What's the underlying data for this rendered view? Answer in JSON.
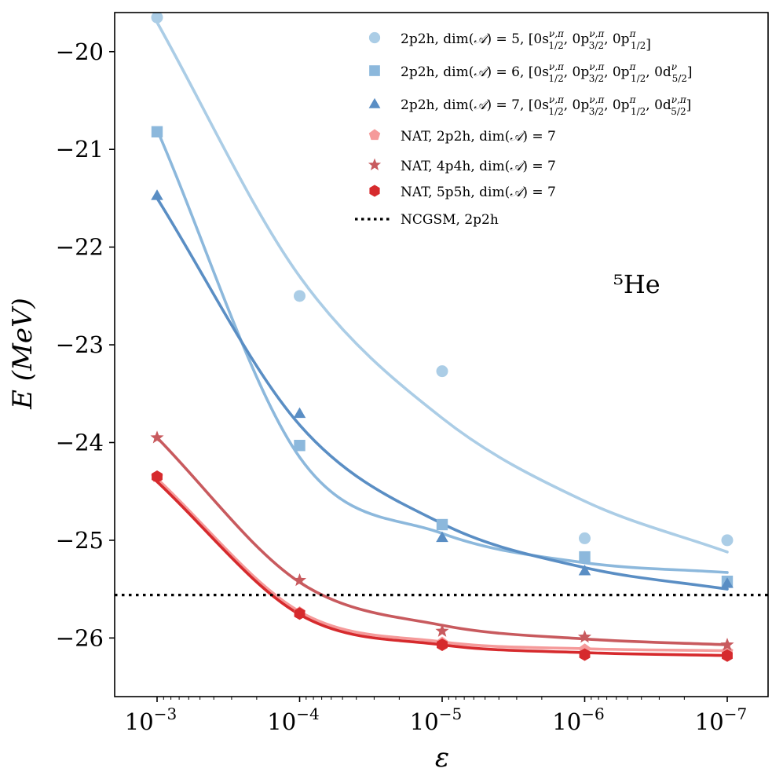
{
  "chart_data": {
    "type": "scatter",
    "title": "",
    "annotation": "⁵He",
    "xlabel": "ε",
    "ylabel": "E (MeV)",
    "x_scale": "log-reversed",
    "x": [
      0.001,
      0.0001,
      1e-05,
      1e-06,
      1e-07
    ],
    "xtick_labels": [
      {
        "base": "10",
        "exp": "−3"
      },
      {
        "base": "10",
        "exp": "−4"
      },
      {
        "base": "10",
        "exp": "−5"
      },
      {
        "base": "10",
        "exp": "−6"
      },
      {
        "base": "10",
        "exp": "−7"
      }
    ],
    "ylim": [
      -26.6,
      -19.6
    ],
    "yticks": [
      -26,
      -25,
      -24,
      -23,
      -22,
      -21,
      -20
    ],
    "ytick_labels": [
      "−26",
      "−25",
      "−24",
      "−23",
      "−22",
      "−21",
      "−20"
    ],
    "grid": false,
    "legend_position": "top-right",
    "series": [
      {
        "marker": "circle",
        "color": "#abcde6",
        "legend": {
          "main": "2p2h, dim(",
          "calA": "𝒜",
          "after": ") = 5, [0s",
          "sup1": "ν,π",
          "sub1": "1/2",
          "mid1": ", 0p",
          "sup2": "ν,π",
          "sub2": "3/2",
          "mid2": ", 0p",
          "sup3": "π",
          "sub3": "1/2",
          "mid3": "",
          "sup4": "",
          "sub4": "",
          "end": "]"
        },
        "values": [
          -19.65,
          -22.5,
          -23.27,
          -24.98,
          -25.0
        ],
        "fit": [
          -19.7,
          -22.3,
          -23.75,
          -24.6,
          -25.12
        ]
      },
      {
        "marker": "square",
        "color": "#8cb8dc",
        "legend": {
          "main": "2p2h, dim(",
          "calA": "𝒜",
          "after": ") = 6, [0s",
          "sup1": "ν,π",
          "sub1": "1/2",
          "mid1": ", 0p",
          "sup2": "ν,π",
          "sub2": "3/2",
          "mid2": ", 0p",
          "sup3": "π",
          "sub3": "1/2",
          "mid3": ", 0d",
          "sup4": "ν",
          "sub4": "5/2",
          "end": "]"
        },
        "values": [
          -20.82,
          -24.03,
          -24.84,
          -25.17,
          -25.42
        ],
        "fit": [
          -20.8,
          -24.15,
          -24.93,
          -25.23,
          -25.33
        ]
      },
      {
        "marker": "triangle",
        "color": "#5a8ec4",
        "legend": {
          "main": "2p2h, dim(",
          "calA": "𝒜",
          "after": ") = 7, [0s",
          "sup1": "ν,π",
          "sub1": "1/2",
          "mid1": ", 0p",
          "sup2": "ν,π",
          "sub2": "3/2",
          "mid2": ", 0p",
          "sup3": "π",
          "sub3": "1/2",
          "mid3": ", 0d",
          "sup4": "ν,π",
          "sub4": "5/2",
          "end": "]"
        },
        "values": [
          -21.47,
          -23.7,
          -24.97,
          -25.31,
          -25.44
        ],
        "fit": [
          -21.5,
          -23.82,
          -24.83,
          -25.28,
          -25.5
        ]
      },
      {
        "marker": "pentagon",
        "color": "#f59a9a",
        "legend": {
          "main": "NAT, 2p2h, dim(",
          "calA": "𝒜",
          "after": ") = 7",
          "sup1": "",
          "sub1": "",
          "mid1": "",
          "sup2": "",
          "sub2": "",
          "mid2": "",
          "sup3": "",
          "sub3": "",
          "mid3": "",
          "sup4": "",
          "sub4": "",
          "end": ""
        },
        "values": [
          -24.35,
          -25.74,
          -26.05,
          -26.12,
          -26.14
        ],
        "fit": [
          -24.37,
          -25.73,
          -26.04,
          -26.11,
          -26.13
        ]
      },
      {
        "marker": "star",
        "color": "#c85a5e",
        "legend": {
          "main": "NAT, 4p4h, dim(",
          "calA": "𝒜",
          "after": ") = 7",
          "sup1": "",
          "sub1": "",
          "mid1": "",
          "sup2": "",
          "sub2": "",
          "mid2": "",
          "sup3": "",
          "sub3": "",
          "mid3": "",
          "sup4": "",
          "sub4": "",
          "end": ""
        },
        "values": [
          -23.95,
          -25.41,
          -25.93,
          -25.99,
          -26.07
        ],
        "fit": [
          -23.95,
          -25.43,
          -25.87,
          -26.01,
          -26.07
        ]
      },
      {
        "marker": "hexagon",
        "color": "#d62a2d",
        "legend": {
          "main": "NAT, 5p5h, dim(",
          "calA": "𝒜",
          "after": ") = 7",
          "sup1": "",
          "sub1": "",
          "mid1": "",
          "sup2": "",
          "sub2": "",
          "mid2": "",
          "sup3": "",
          "sub3": "",
          "mid3": "",
          "sup4": "",
          "sub4": "",
          "end": ""
        },
        "values": [
          -24.35,
          -25.75,
          -26.07,
          -26.17,
          -26.18
        ],
        "fit": [
          -24.4,
          -25.76,
          -26.07,
          -26.15,
          -26.18
        ]
      }
    ],
    "reference_line": {
      "label": "NCGSM, 2p2h",
      "y": -25.56,
      "color": "#000000",
      "style": "dotted"
    }
  }
}
